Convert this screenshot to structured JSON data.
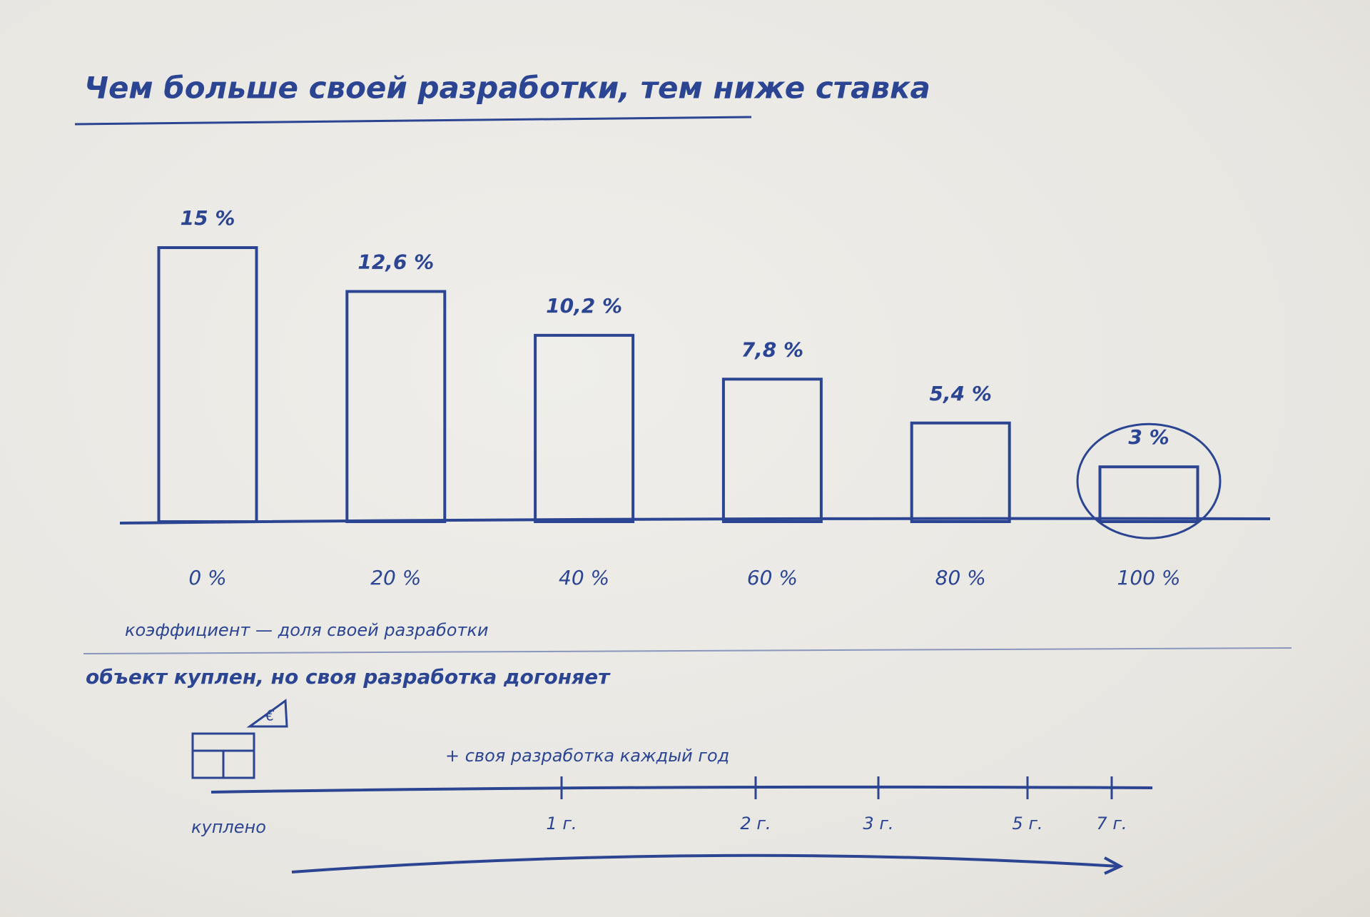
{
  "chart_data": [
    {
      "type": "bar",
      "title": "Чем больше своей разработки, тем ниже ставка",
      "x_label": "коэффициент — доля своей разработки",
      "categories": [
        "0 %",
        "20 %",
        "40 %",
        "60 %",
        "80 %",
        "100 %"
      ],
      "values": [
        15,
        12.6,
        10.2,
        7.8,
        5.4,
        3
      ],
      "value_labels": [
        "15 %",
        "12,6 %",
        "10,2 %",
        "7,8 %",
        "5,4 %",
        "3 %"
      ],
      "color": "#2b4592",
      "highlight_index": 5
    },
    {
      "type": "timeline",
      "title": "объект куплен, но своя разработка догоняет",
      "start_label": "куплено",
      "annotation": "+ своя разработка каждый год",
      "categories": [
        "1 г.",
        "2 г.",
        "3 г.",
        "5 г.",
        "7 г."
      ],
      "color": "#2b4592"
    }
  ]
}
